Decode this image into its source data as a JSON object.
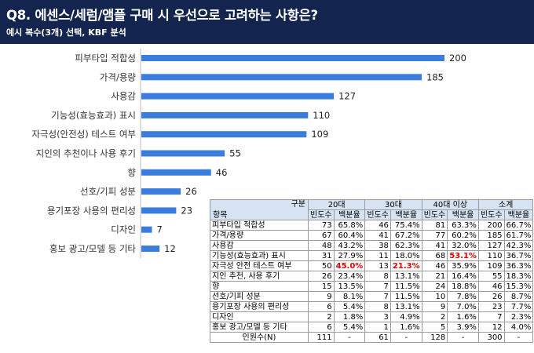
{
  "header": {
    "title": "Q8. 에센스/세럼/앰플 구매 시 우선으로 고려하는 사항은?",
    "subtitle": "예시 복수(3개) 선택, KBF 분석"
  },
  "chart_data": [
    {
      "type": "bar",
      "orientation": "horizontal",
      "categories": [
        "피부타입 적합성",
        "가격/용량",
        "사용감",
        "기능성(효능효과) 표시",
        "자극성(안전성) 테스트 여부",
        "지인의 추천이나 사용 후기",
        "향",
        "선호/기피 성분",
        "용기포장 사용의 편리성",
        "디자인",
        "홍보 광고/모델 등 기타"
      ],
      "values": [
        200,
        185,
        127,
        110,
        109,
        55,
        46,
        26,
        23,
        7,
        12
      ],
      "xlim": [
        0,
        200
      ],
      "grid": false,
      "bar_color": "#3b7ddd"
    },
    {
      "type": "table",
      "corner_top": "구분",
      "corner_bottom": "항목",
      "groups": [
        "20대",
        "30대",
        "40대 이상",
        "소계"
      ],
      "subheaders": [
        "빈도수",
        "백분율"
      ],
      "rows": [
        {
          "label": "피부타입 적합성",
          "cells": [
            "73",
            "65.8%",
            "46",
            "75.4%",
            "81",
            "63.3%",
            "200",
            "66.7%"
          ]
        },
        {
          "label": "가격/용량",
          "cells": [
            "67",
            "60.4%",
            "41",
            "67.2%",
            "77",
            "60.2%",
            "185",
            "61.7%"
          ]
        },
        {
          "label": "사용감",
          "cells": [
            "48",
            "43.2%",
            "38",
            "62.3%",
            "41",
            "32.0%",
            "127",
            "42.3%"
          ]
        },
        {
          "label": "기능성(효능효과) 표시",
          "cells": [
            "31",
            "27.9%",
            "11",
            "18.0%",
            "68",
            "53.1%",
            "110",
            "36.7%"
          ]
        },
        {
          "label": "자극성 안전 테스트 여부",
          "cells": [
            "50",
            "45.0%",
            "13",
            "21.3%",
            "46",
            "35.9%",
            "109",
            "36.3%"
          ]
        },
        {
          "label": "지인 추천, 사용 후기",
          "cells": [
            "26",
            "23.4%",
            "8",
            "13.1%",
            "21",
            "16.4%",
            "55",
            "18.3%"
          ]
        },
        {
          "label": "향",
          "cells": [
            "15",
            "13.5%",
            "7",
            "11.5%",
            "24",
            "18.8%",
            "46",
            "15.3%"
          ]
        },
        {
          "label": "선호/기피 성분",
          "cells": [
            "9",
            "8.1%",
            "7",
            "11.5%",
            "10",
            "7.8%",
            "26",
            "8.7%"
          ]
        },
        {
          "label": "용기포장 사용의 편리성",
          "cells": [
            "6",
            "5.4%",
            "8",
            "13.1%",
            "9",
            "7.0%",
            "23",
            "7.7%"
          ]
        },
        {
          "label": "디자인",
          "cells": [
            "2",
            "1.8%",
            "3",
            "4.9%",
            "2",
            "1.6%",
            "7",
            "2.3%"
          ]
        },
        {
          "label": "홍보 광고/모델 등 기타",
          "cells": [
            "6",
            "5.4%",
            "1",
            "1.6%",
            "5",
            "3.9%",
            "12",
            "4.0%"
          ]
        }
      ],
      "highlight_color": "#e00000",
      "highlights": [
        [
          3,
          5
        ],
        [
          4,
          1
        ],
        [
          4,
          3
        ]
      ],
      "footer": {
        "label": "인원수(N)",
        "cells": [
          "111",
          "-",
          "61",
          "-",
          "128",
          "-",
          "300",
          "-"
        ]
      }
    }
  ]
}
